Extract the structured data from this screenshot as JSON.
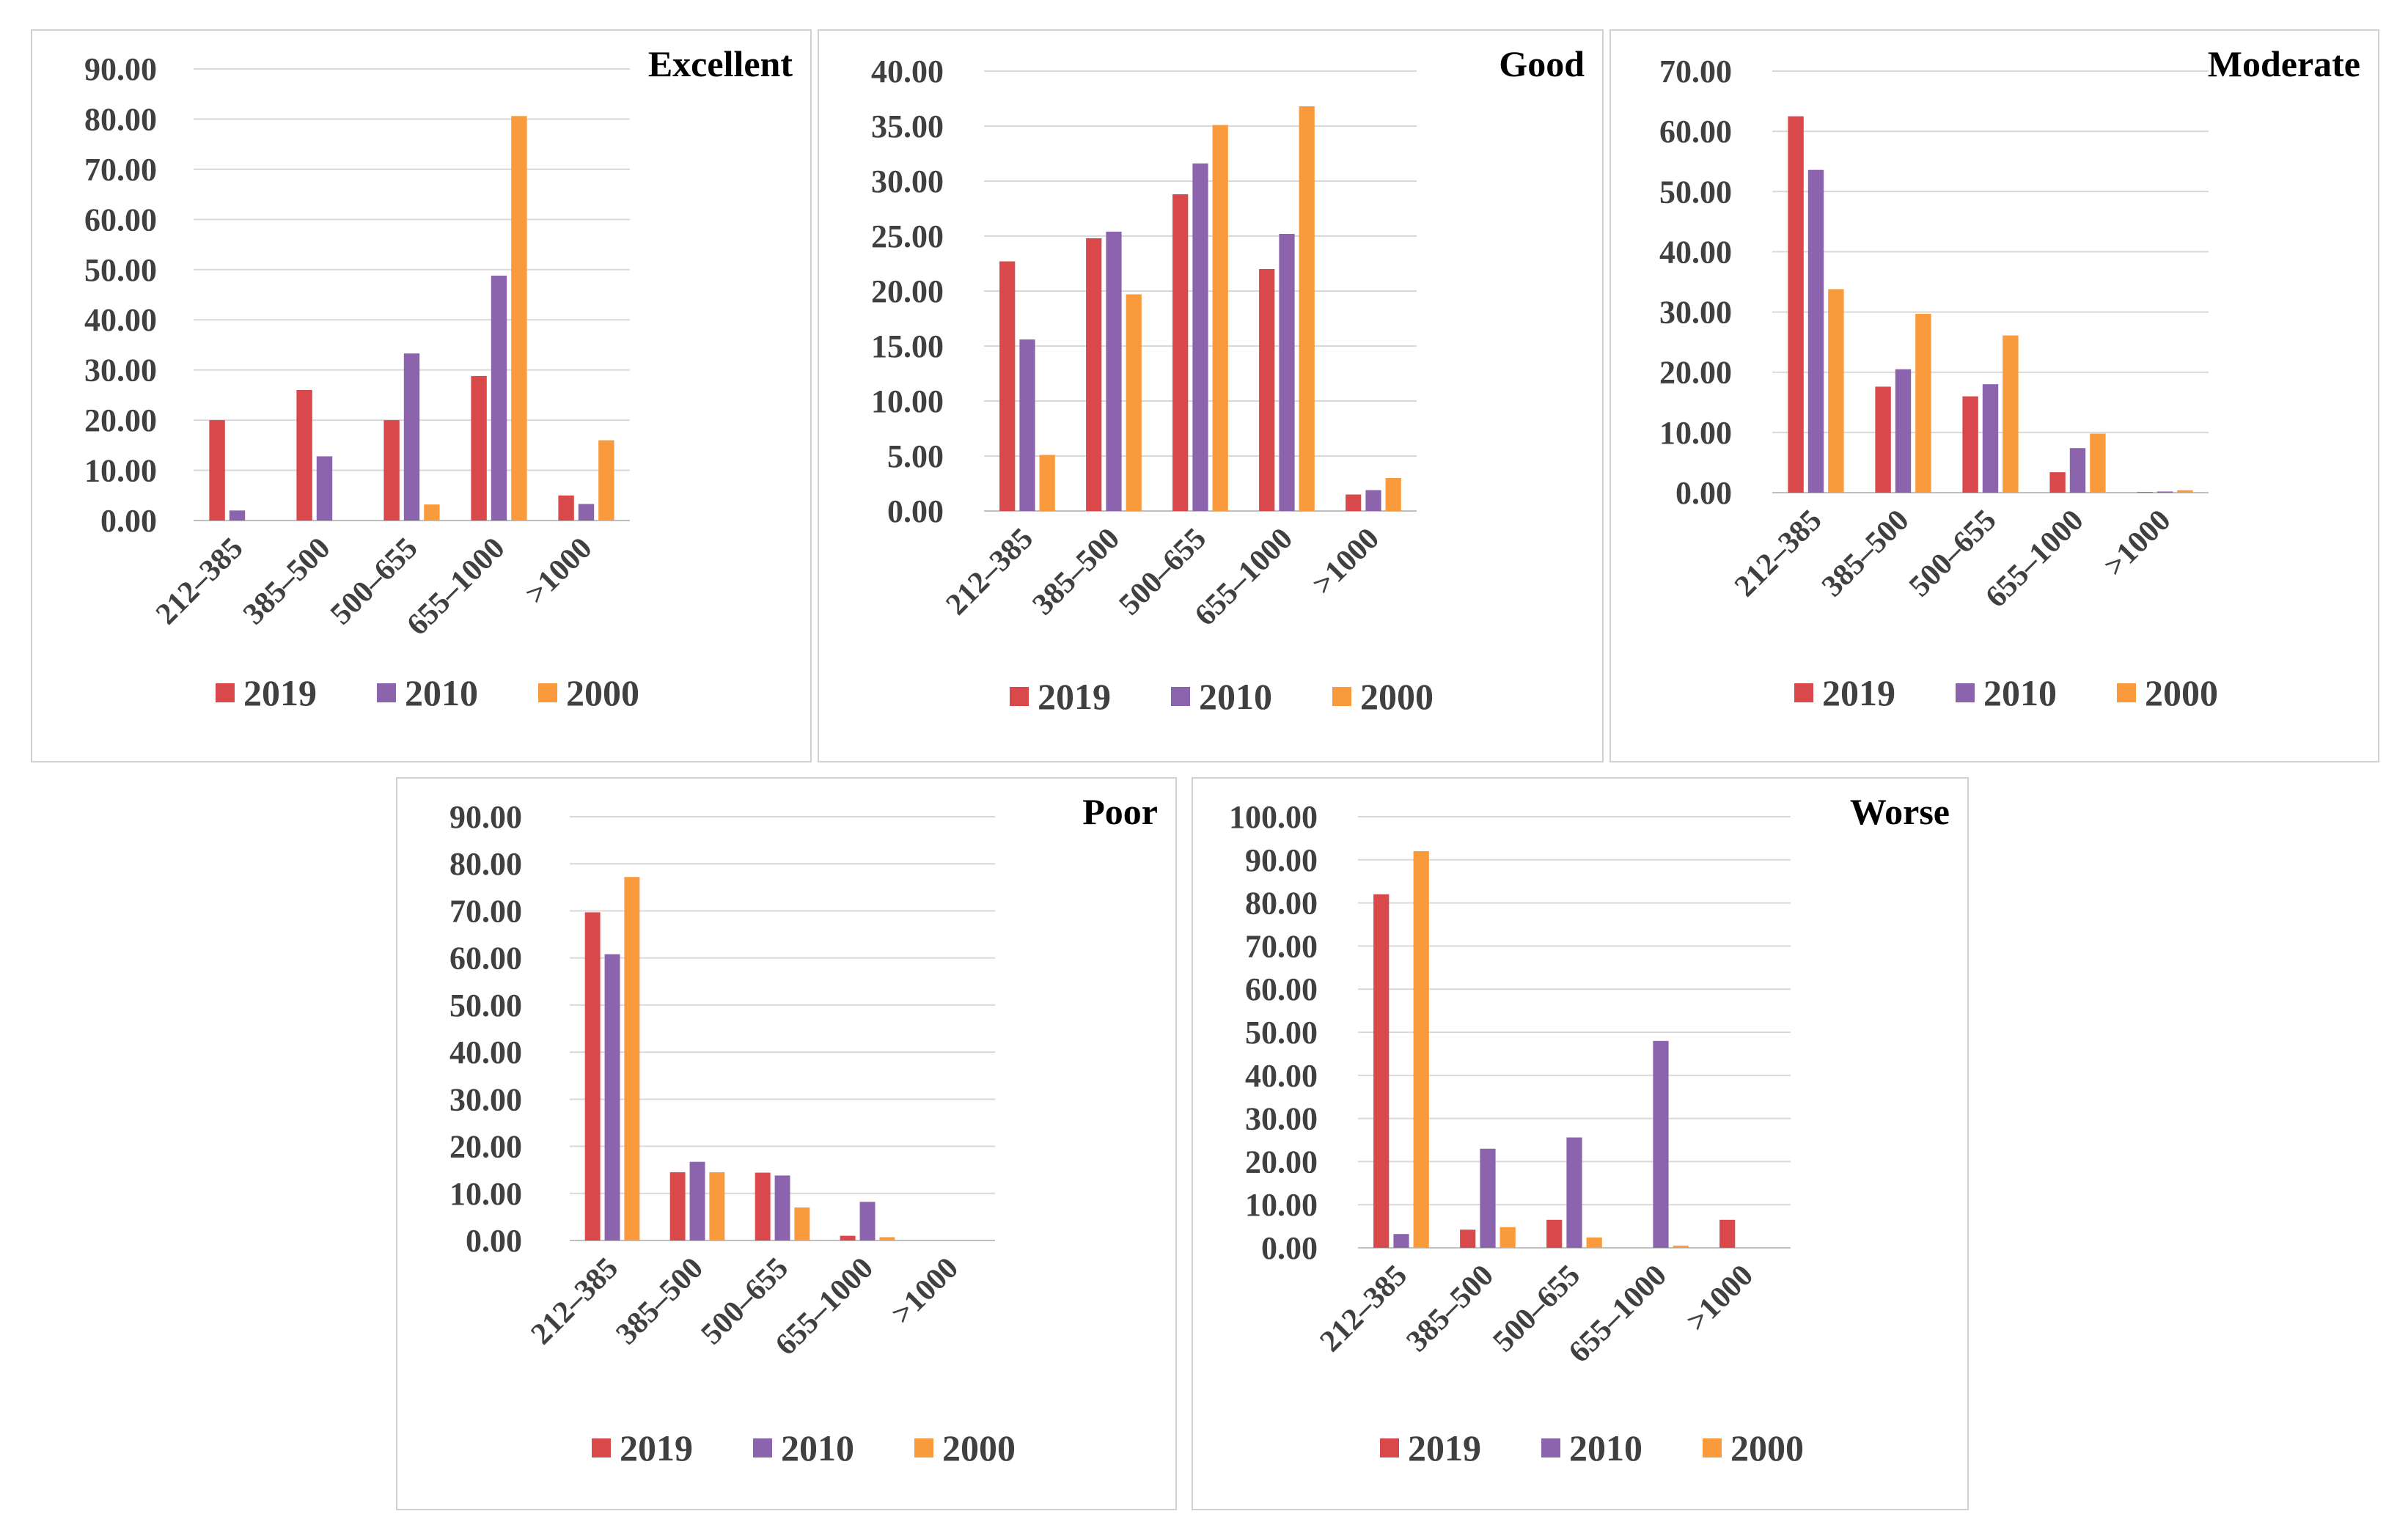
{
  "legend": [
    "2019",
    "2010",
    "2000"
  ],
  "colors": {
    "2019": "#d9484b",
    "2010": "#8b64ad",
    "2000": "#f99a3c"
  },
  "chart_data": [
    {
      "type": "bar",
      "title": "Excellent",
      "categories": [
        "212–385",
        "385–500",
        "500–655",
        "655–1000",
        ">1000"
      ],
      "ylim": [
        0,
        90
      ],
      "yticks": [
        "0.00",
        "10.00",
        "20.00",
        "30.00",
        "40.00",
        "50.00",
        "60.00",
        "70.00",
        "80.00",
        "90.00"
      ],
      "series": [
        {
          "name": "2019",
          "values": [
            20.0,
            26.0,
            20.0,
            28.8,
            5.0
          ]
        },
        {
          "name": "2010",
          "values": [
            2.0,
            12.8,
            33.3,
            48.8,
            3.3
          ]
        },
        {
          "name": "2000",
          "values": [
            0.0,
            0.0,
            3.2,
            80.6,
            16.0
          ]
        }
      ]
    },
    {
      "type": "bar",
      "title": "Good",
      "categories": [
        "212–385",
        "385–500",
        "500–655",
        "655–1000",
        ">1000"
      ],
      "ylim": [
        0,
        40
      ],
      "yticks": [
        "0.00",
        "5.00",
        "10.00",
        "15.00",
        "20.00",
        "25.00",
        "30.00",
        "35.00",
        "40.00"
      ],
      "series": [
        {
          "name": "2019",
          "values": [
            22.7,
            24.8,
            28.8,
            22.0,
            1.5
          ]
        },
        {
          "name": "2010",
          "values": [
            15.6,
            25.4,
            31.6,
            25.2,
            1.9
          ]
        },
        {
          "name": "2000",
          "values": [
            5.1,
            19.7,
            35.1,
            36.8,
            3.0
          ]
        }
      ]
    },
    {
      "type": "bar",
      "title": "Moderate",
      "categories": [
        "212–385",
        "385–500",
        "500–655",
        "655–1000",
        ">1000"
      ],
      "ylim": [
        0,
        70
      ],
      "yticks": [
        "0.00",
        "10.00",
        "20.00",
        "30.00",
        "40.00",
        "50.00",
        "60.00",
        "70.00"
      ],
      "series": [
        {
          "name": "2019",
          "values": [
            62.5,
            17.6,
            16.0,
            3.4,
            0.1
          ]
        },
        {
          "name": "2010",
          "values": [
            53.6,
            20.5,
            18.0,
            7.4,
            0.2
          ]
        },
        {
          "name": "2000",
          "values": [
            33.8,
            29.7,
            26.1,
            9.8,
            0.4
          ]
        }
      ]
    },
    {
      "type": "bar",
      "title": "Poor",
      "categories": [
        "212–385",
        "385–500",
        "500–655",
        "655–1000",
        ">1000"
      ],
      "ylim": [
        0,
        90
      ],
      "yticks": [
        "0.00",
        "10.00",
        "20.00",
        "30.00",
        "40.00",
        "50.00",
        "60.00",
        "70.00",
        "80.00",
        "90.00"
      ],
      "series": [
        {
          "name": "2019",
          "values": [
            69.7,
            14.5,
            14.4,
            1.0,
            0.0
          ]
        },
        {
          "name": "2010",
          "values": [
            60.8,
            16.7,
            13.8,
            8.2,
            0.0
          ]
        },
        {
          "name": "2000",
          "values": [
            77.2,
            14.5,
            7.0,
            0.7,
            0.0
          ]
        }
      ]
    },
    {
      "type": "bar",
      "title": "Worse",
      "categories": [
        "212–385",
        "385–500",
        "500–655",
        "655–1000",
        ">1000"
      ],
      "ylim": [
        0,
        100
      ],
      "yticks": [
        "0.00",
        "10.00",
        "20.00",
        "30.00",
        "40.00",
        "50.00",
        "60.00",
        "70.00",
        "80.00",
        "90.00",
        "100.00"
      ],
      "series": [
        {
          "name": "2019",
          "values": [
            82.0,
            4.2,
            6.5,
            0.0,
            6.5
          ]
        },
        {
          "name": "2010",
          "values": [
            3.2,
            23.0,
            25.6,
            48.0,
            0.0
          ]
        },
        {
          "name": "2000",
          "values": [
            92.0,
            4.8,
            2.4,
            0.5,
            0.0
          ]
        }
      ]
    }
  ]
}
